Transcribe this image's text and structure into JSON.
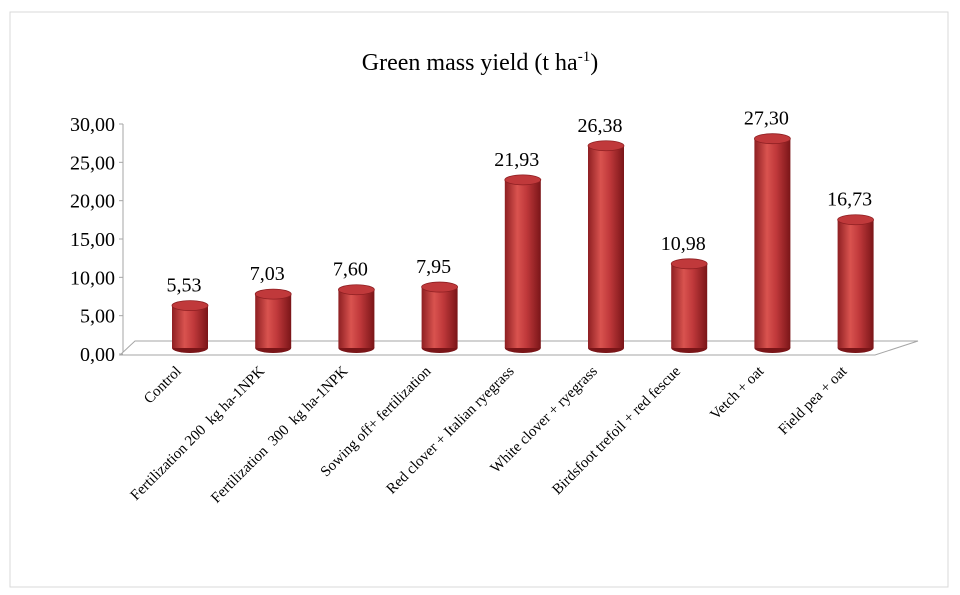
{
  "chart_data": {
    "type": "bar",
    "title": [
      "Green mass yield (t ha",
      "-1",
      ")"
    ],
    "categories": [
      "Control",
      "Fertilization 200  kg ha-1NPK",
      "Fertilization  300  kg ha-1NPK",
      "Sowing off+ fertilization",
      "Red clover + Italian ryegrass",
      "White clover + ryegrass",
      "Birdsfoot trefoil + red fescue",
      "Vetch + oat",
      "Field pea + oat"
    ],
    "values": [
      5.53,
      7.03,
      7.6,
      7.95,
      21.93,
      26.38,
      10.98,
      27.3,
      16.73
    ],
    "value_labels": [
      "5,53",
      "7,03",
      "7,60",
      "7,95",
      "21,93",
      "26,38",
      "10,98",
      "27,30",
      "16,73"
    ],
    "color": "#c0393b",
    "ylim": [
      0,
      30
    ],
    "yticks": [
      {
        "value": 0,
        "label": "0,00"
      },
      {
        "value": 5,
        "label": "5,00"
      },
      {
        "value": 10,
        "label": "10,00"
      },
      {
        "value": 15,
        "label": "15,00"
      },
      {
        "value": 20,
        "label": "20,00"
      },
      {
        "value": 25,
        "label": "25,00"
      },
      {
        "value": 30,
        "label": "30,00"
      }
    ]
  }
}
